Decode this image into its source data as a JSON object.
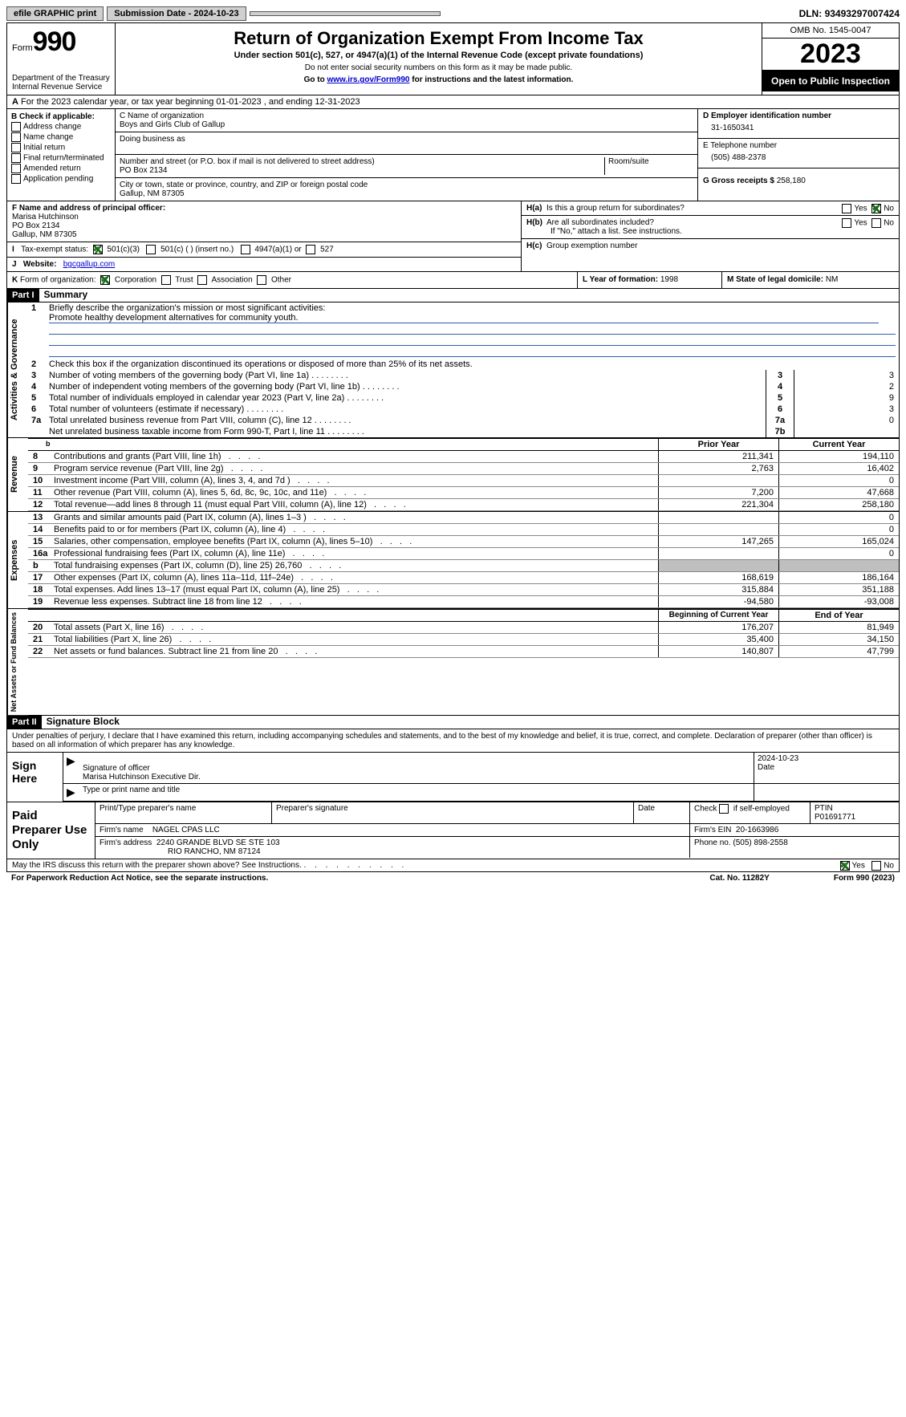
{
  "topbar": {
    "efile": "efile GRAPHIC print",
    "sub_label": "Submission Date - ",
    "sub_date": "2024-10-23",
    "dln_label": "DLN: ",
    "dln": "93493297007424"
  },
  "header": {
    "form_label": "Form",
    "form_no": "990",
    "dept": "Department of the Treasury\nInternal Revenue Service",
    "title": "Return of Organization Exempt From Income Tax",
    "subtitle": "Under section 501(c), 527, or 4947(a)(1) of the Internal Revenue Code (except private foundations)",
    "note1": "Do not enter social security numbers on this form as it may be made public.",
    "note2_pre": "Go to ",
    "note2_link": "www.irs.gov/Form990",
    "note2_post": " for instructions and the latest information.",
    "omb": "OMB No. 1545-0047",
    "tax_year": "2023",
    "open": "Open to Public Inspection"
  },
  "lineA": "For the 2023 calendar year, or tax year beginning 01-01-2023   , and ending 12-31-2023",
  "boxB": {
    "title": "B Check if applicable:",
    "items": [
      "Address change",
      "Name change",
      "Initial return",
      "Final return/terminated",
      "Amended return",
      "Application pending"
    ]
  },
  "boxC": {
    "name_label": "C Name of organization",
    "name": "Boys and Girls Club of Gallup",
    "dba_label": "Doing business as",
    "street_label": "Number and street (or P.O. box if mail is not delivered to street address)",
    "room_label": "Room/suite",
    "street": "PO Box 2134",
    "city_label": "City or town, state or province, country, and ZIP or foreign postal code",
    "city": "Gallup, NM  87305"
  },
  "boxD": {
    "label": "D Employer identification number",
    "value": "31-1650341"
  },
  "boxE": {
    "label": "E Telephone number",
    "value": "(505) 488-2378"
  },
  "boxG": {
    "label": "G Gross receipts $ ",
    "value": "258,180"
  },
  "boxF": {
    "label": "F  Name and address of principal officer:",
    "name": "Marisa Hutchinson",
    "addr1": "PO Box 2134",
    "addr2": "Gallup, NM  87305"
  },
  "boxH": {
    "a": "Is this a group return for subordinates?",
    "b": "Are all subordinates included?",
    "note": "If \"No,\" attach a list. See instructions.",
    "c": "Group exemption number",
    "ha_yes": false,
    "ha_no": true,
    "hb_yes": false,
    "hb_no": false
  },
  "boxI": {
    "label": "Tax-exempt status:",
    "opts": [
      "501(c)(3)",
      "501(c) (  ) (insert no.)",
      "4947(a)(1) or",
      "527"
    ],
    "checked": 0
  },
  "boxJ": {
    "label": "Website:",
    "value": "bgcgallup.com"
  },
  "boxK": {
    "label": "Form of organization:",
    "opts": [
      "Corporation",
      "Trust",
      "Association",
      "Other"
    ],
    "checked": 0
  },
  "boxL": {
    "label": "L Year of formation: ",
    "value": "1998"
  },
  "boxM": {
    "label": "M State of legal domicile: ",
    "value": "NM"
  },
  "parts": {
    "p1": "Part I",
    "p1t": "Summary",
    "p2": "Part II",
    "p2t": "Signature Block"
  },
  "sections": {
    "ag": "Activities & Governance",
    "rev": "Revenue",
    "exp": "Expenses",
    "na": "Net Assets or Fund Balances"
  },
  "s1": {
    "l1a": "Briefly describe the organization's mission or most significant activities:",
    "l1b": "Promote healthy development alternatives for community youth.",
    "l2": "Check this box      if the organization discontinued its operations or disposed of more than 25% of its net assets.",
    "lines": [
      {
        "n": "3",
        "t": "Number of voting members of the governing body (Part VI, line 1a)",
        "k": "3",
        "v": "3"
      },
      {
        "n": "4",
        "t": "Number of independent voting members of the governing body (Part VI, line 1b)",
        "k": "4",
        "v": "2"
      },
      {
        "n": "5",
        "t": "Total number of individuals employed in calendar year 2023 (Part V, line 2a)",
        "k": "5",
        "v": "9"
      },
      {
        "n": "6",
        "t": "Total number of volunteers (estimate if necessary)",
        "k": "6",
        "v": "3"
      },
      {
        "n": "7a",
        "t": "Total unrelated business revenue from Part VIII, column (C), line 12",
        "k": "7a",
        "v": "0"
      },
      {
        "n": "",
        "t": "Net unrelated business taxable income from Form 990-T, Part I, line 11",
        "k": "7b",
        "v": ""
      }
    ]
  },
  "cols": {
    "prior": "Prior Year",
    "current": "Current Year",
    "boy": "Beginning of Current Year",
    "eoy": "End of Year"
  },
  "rev": [
    {
      "n": "8",
      "t": "Contributions and grants (Part VIII, line 1h)",
      "p": "211,341",
      "c": "194,110"
    },
    {
      "n": "9",
      "t": "Program service revenue (Part VIII, line 2g)",
      "p": "2,763",
      "c": "16,402"
    },
    {
      "n": "10",
      "t": "Investment income (Part VIII, column (A), lines 3, 4, and 7d )",
      "p": "",
      "c": "0"
    },
    {
      "n": "11",
      "t": "Other revenue (Part VIII, column (A), lines 5, 6d, 8c, 9c, 10c, and 11e)",
      "p": "7,200",
      "c": "47,668"
    },
    {
      "n": "12",
      "t": "Total revenue—add lines 8 through 11 (must equal Part VIII, column (A), line 12)",
      "p": "221,304",
      "c": "258,180"
    }
  ],
  "exp": [
    {
      "n": "13",
      "t": "Grants and similar amounts paid (Part IX, column (A), lines 1–3 )",
      "p": "",
      "c": "0"
    },
    {
      "n": "14",
      "t": "Benefits paid to or for members (Part IX, column (A), line 4)",
      "p": "",
      "c": "0"
    },
    {
      "n": "15",
      "t": "Salaries, other compensation, employee benefits (Part IX, column (A), lines 5–10)",
      "p": "147,265",
      "c": "165,024"
    },
    {
      "n": "16a",
      "t": "Professional fundraising fees (Part IX, column (A), line 11e)",
      "p": "",
      "c": "0"
    },
    {
      "n": "b",
      "t": "Total fundraising expenses (Part IX, column (D), line 25) 26,760",
      "p": "GRAY",
      "c": "GRAY"
    },
    {
      "n": "17",
      "t": "Other expenses (Part IX, column (A), lines 11a–11d, 11f–24e)",
      "p": "168,619",
      "c": "186,164"
    },
    {
      "n": "18",
      "t": "Total expenses. Add lines 13–17 (must equal Part IX, column (A), line 25)",
      "p": "315,884",
      "c": "351,188"
    },
    {
      "n": "19",
      "t": "Revenue less expenses. Subtract line 18 from line 12",
      "p": "-94,580",
      "c": "-93,008"
    }
  ],
  "na": [
    {
      "n": "20",
      "t": "Total assets (Part X, line 16)",
      "p": "176,207",
      "c": "81,949"
    },
    {
      "n": "21",
      "t": "Total liabilities (Part X, line 26)",
      "p": "35,400",
      "c": "34,150"
    },
    {
      "n": "22",
      "t": "Net assets or fund balances. Subtract line 21 from line 20",
      "p": "140,807",
      "c": "47,799"
    }
  ],
  "sig": {
    "decl": "Under penalties of perjury, I declare that I have examined this return, including accompanying schedules and statements, and to the best of my knowledge and belief, it is true, correct, and complete. Declaration of preparer (other than officer) is based on all information of which preparer has any knowledge.",
    "sign_here": "Sign Here",
    "sig_label": "Signature of officer",
    "date_label": "Date",
    "sig_date": "2024-10-23",
    "officer": "Marisa Hutchinson  Executive Dir.",
    "type_label": "Type or print name and title",
    "paid": "Paid Preparer Use Only",
    "p_name_l": "Print/Type preparer's name",
    "p_sig_l": "Preparer's signature",
    "p_date_l": "Date",
    "p_self_l": "Check       if self-employed",
    "ptin_l": "PTIN",
    "ptin": "P01691771",
    "firm_name_l": "Firm's name",
    "firm_name": "NAGEL CPAS LLC",
    "firm_ein_l": "Firm's EIN",
    "firm_ein": "20-1663986",
    "firm_addr_l": "Firm's address",
    "firm_addr1": "2240 GRANDE BLVD SE STE 103",
    "firm_addr2": "RIO RANCHO, NM  87124",
    "phone_l": "Phone no. ",
    "phone": "(505) 898-2558",
    "discuss": "May the IRS discuss this return with the preparer shown above? See Instructions.",
    "yes": "Yes",
    "no": "No",
    "discuss_yes": true
  },
  "footer": {
    "pra": "For Paperwork Reduction Act Notice, see the separate instructions.",
    "cat": "Cat. No. 11282Y",
    "form": "Form 990 (2023)"
  }
}
